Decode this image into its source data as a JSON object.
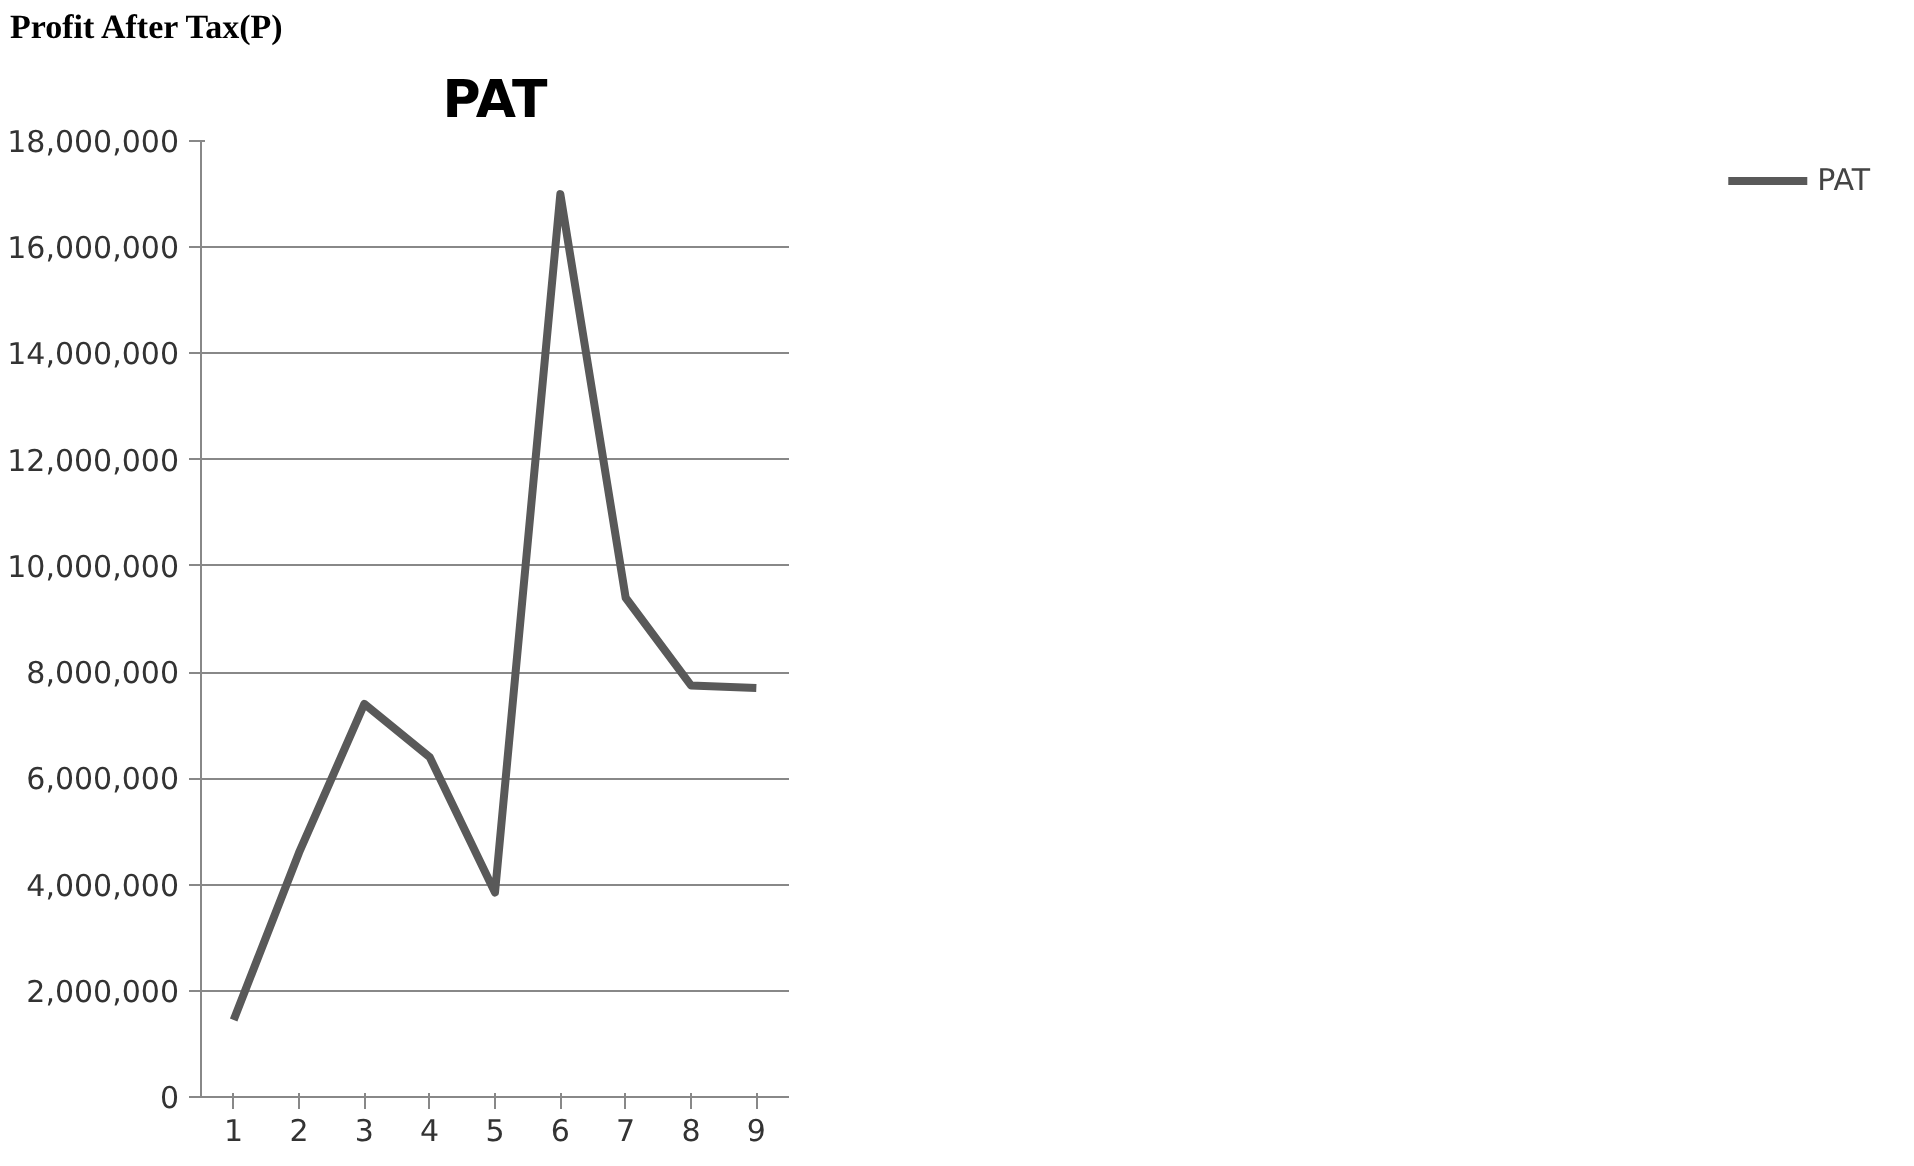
{
  "chart_data": {
    "type": "line",
    "title": "PAT",
    "annotations": [
      "Profit After Tax(P)"
    ],
    "categories": [
      "1",
      "2",
      "3",
      "4",
      "5",
      "6",
      "7",
      "8",
      "9"
    ],
    "series": [
      {
        "name": "PAT",
        "color": "#595959",
        "values": [
          1450000,
          4600000,
          7400000,
          6400000,
          3850000,
          17000000,
          9400000,
          7750000,
          7700000
        ]
      }
    ],
    "ylim": [
      0,
      18000000
    ],
    "yticks": [
      {
        "value": 0,
        "label": "0"
      },
      {
        "value": 2000000,
        "label": "2,000,000"
      },
      {
        "value": 4000000,
        "label": "4,000,000"
      },
      {
        "value": 6000000,
        "label": "6,000,000"
      },
      {
        "value": 8000000,
        "label": "8,000,000"
      },
      {
        "value": 10000000,
        "label": "10,000,000"
      },
      {
        "value": 12000000,
        "label": "12,000,000"
      },
      {
        "value": 14000000,
        "label": "14,000,000"
      },
      {
        "value": 16000000,
        "label": "16,000,000"
      },
      {
        "value": 18000000,
        "label": "18,000,000"
      }
    ],
    "grid": "y",
    "legend": "right",
    "marker": "none",
    "line_style": "solid"
  }
}
